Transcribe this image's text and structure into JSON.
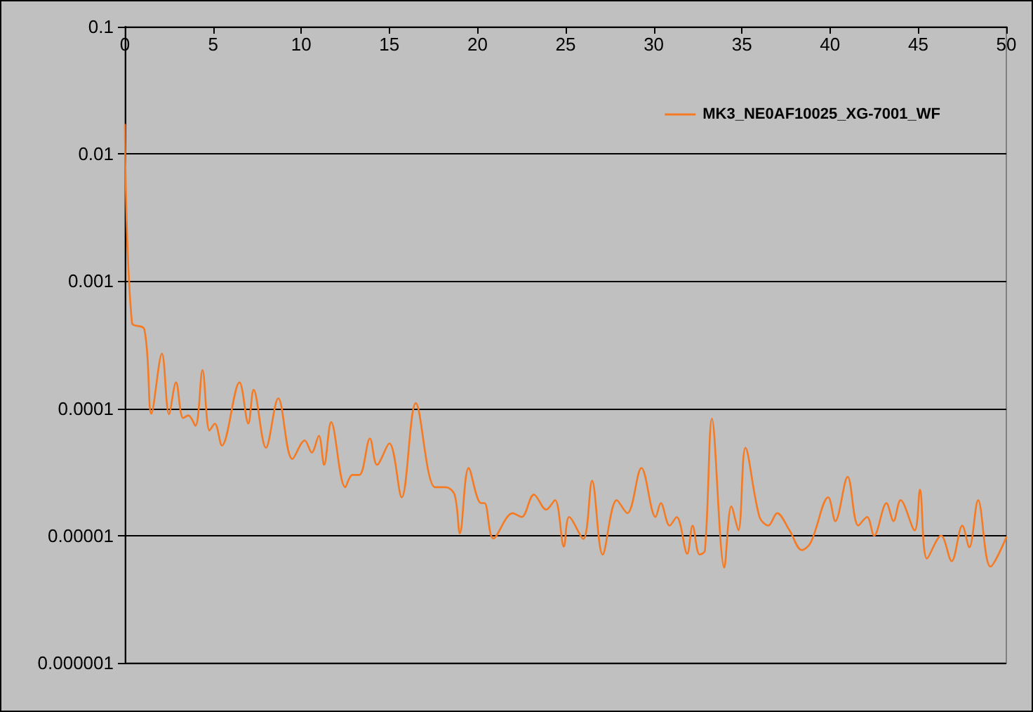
{
  "chart_data": {
    "type": "line",
    "xlim": [
      0,
      50
    ],
    "xticks": [
      0,
      5,
      10,
      15,
      20,
      25,
      30,
      35,
      40,
      45,
      50
    ],
    "ylim": [
      1e-06,
      0.1
    ],
    "yticks": [
      {
        "value": 1e-06,
        "label": "0.000001"
      },
      {
        "value": 1e-05,
        "label": "0.00001"
      },
      0.0001,
      0.001,
      0.01,
      0.1
    ],
    "log": "y",
    "grid": "y",
    "legend": "top right",
    "marker": "none",
    "line_style": "solid",
    "series": [
      {
        "name": "MK3_NE0AF10025_XG-7001_WF",
        "color": "#f57a22",
        "x": [
          0,
          0.4,
          1.1,
          1.5,
          2.1,
          2.5,
          2.9,
          3.3,
          3.6,
          4.0,
          4.4,
          4.8,
          5.1,
          5.5,
          6.5,
          7.0,
          7.3,
          8.0,
          8.7,
          9.5,
          10.2,
          10.6,
          11.0,
          11.3,
          11.7,
          12.5,
          12.9,
          13.3,
          13.9,
          14.3,
          15.0,
          15.7,
          16.5,
          17.6,
          18.2,
          18.7,
          19.0,
          19.5,
          20.2,
          20.4,
          20.9,
          22.0,
          22.5,
          23.2,
          23.9,
          24.4,
          24.9,
          25.2,
          26.0,
          26.5,
          27.1,
          27.9,
          28.5,
          29.3,
          30.1,
          30.4,
          30.9,
          31.3,
          31.9,
          32.2,
          32.6,
          32.9,
          33.3,
          34.0,
          34.4,
          34.8,
          35.2,
          36.0,
          36.5,
          37.0,
          37.7,
          38.4,
          38.9,
          39.9,
          40.3,
          41.0,
          41.6,
          42.1,
          42.5,
          43.2,
          43.6,
          44.0,
          44.8,
          45.1,
          45.5,
          46.3,
          46.9,
          47.5,
          47.9,
          48.4,
          49.1,
          50
        ],
        "values": [
          0.017,
          0.00047,
          0.00042,
          9.1e-05,
          0.00027,
          9e-05,
          0.00016,
          8.4e-05,
          8.8e-05,
          7.3e-05,
          0.0002,
          6.7e-05,
          7.6e-05,
          5.1e-05,
          0.00016,
          7.6e-05,
          0.00014,
          4.9e-05,
          0.00012,
          4e-05,
          5.6e-05,
          4.5e-05,
          6.1e-05,
          3.6e-05,
          7.8e-05,
          2.4e-05,
          3e-05,
          3e-05,
          5.8e-05,
          3.6e-05,
          5.3e-05,
          2e-05,
          0.00011,
          2.4e-05,
          2.4e-05,
          2.1e-05,
          1.04e-05,
          3.4e-05,
          1.8e-05,
          1.8e-05,
          9.5e-06,
          1.5e-05,
          1.4e-05,
          2.1e-05,
          1.6e-05,
          1.9e-05,
          8.2e-06,
          1.4e-05,
          9.4e-06,
          2.7e-05,
          7.1e-06,
          1.9e-05,
          1.5e-05,
          3.4e-05,
          1.4e-05,
          1.8e-05,
          1.2e-05,
          1.4e-05,
          7.2e-06,
          1.2e-05,
          7.1e-06,
          7.6e-06,
          8.3e-05,
          5.6e-06,
          1.7e-05,
          1.1e-05,
          4.9e-05,
          1.4e-05,
          1.2e-05,
          1.5e-05,
          1.1e-05,
          7.7e-06,
          8.8e-06,
          2e-05,
          1.3e-05,
          2.9e-05,
          1.2e-05,
          1.4e-05,
          1e-05,
          1.8e-05,
          1.3e-05,
          1.9e-05,
          1.1e-05,
          2.3e-05,
          6.6e-06,
          1e-05,
          6.3e-06,
          1.2e-05,
          8.1e-06,
          1.9e-05,
          5.7e-06,
          9.7e-06
        ]
      }
    ]
  }
}
